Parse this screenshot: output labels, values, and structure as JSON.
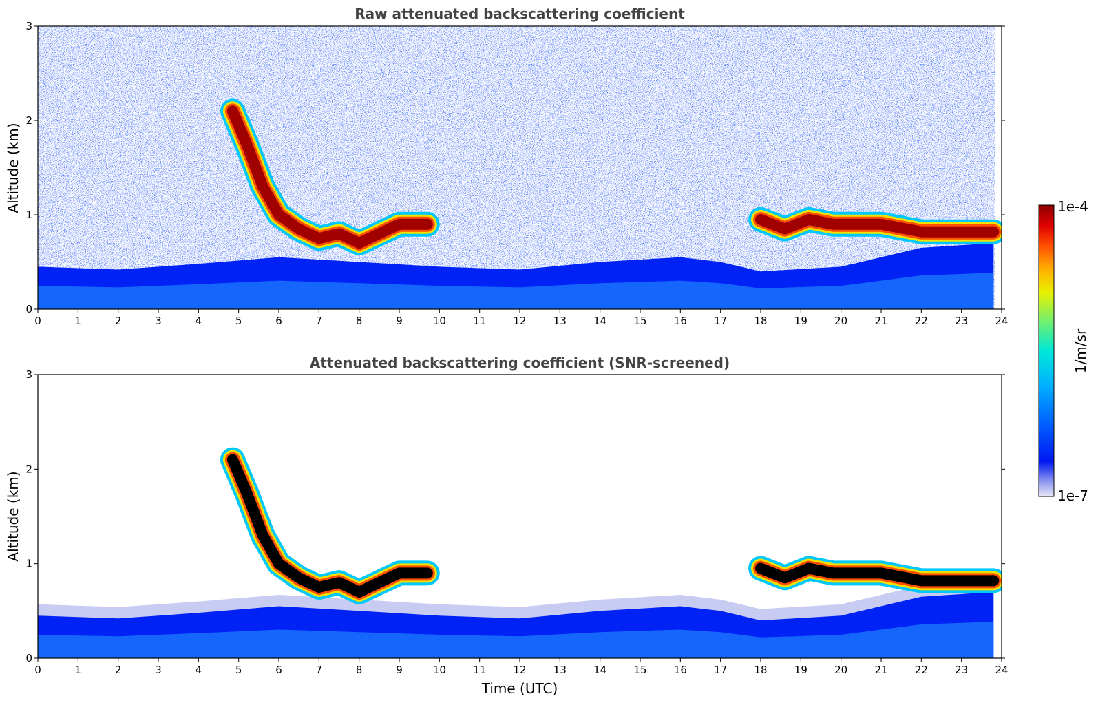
{
  "chart_data": [
    {
      "type": "heatmap",
      "title": "Raw attenuated backscattering coefficient",
      "ylabel": "Altitude (km)",
      "xlabel": "",
      "xlim": [
        0,
        24
      ],
      "ylim": [
        0,
        3
      ],
      "x_ticks": [
        "0",
        "1",
        "2",
        "3",
        "4",
        "5",
        "6",
        "7",
        "8",
        "9",
        "10",
        "11",
        "12",
        "13",
        "14",
        "15",
        "16",
        "17",
        "18",
        "19",
        "20",
        "21",
        "22",
        "23",
        "24"
      ],
      "y_ticks": [
        "0",
        "1",
        "2",
        "3"
      ],
      "boundary_layer_top_km": [
        [
          0,
          0.45
        ],
        [
          2,
          0.42
        ],
        [
          4,
          0.48
        ],
        [
          6,
          0.55
        ],
        [
          8,
          0.5
        ],
        [
          10,
          0.45
        ],
        [
          12,
          0.42
        ],
        [
          14,
          0.5
        ],
        [
          16,
          0.55
        ],
        [
          17,
          0.5
        ],
        [
          18,
          0.4
        ],
        [
          20,
          0.45
        ],
        [
          22,
          0.65
        ],
        [
          23.8,
          0.7
        ]
      ],
      "cloud_layers": [
        {
          "x": [
            4.85,
            5.2,
            5.6,
            6.0,
            6.5,
            7.0,
            7.5,
            8.0,
            8.5,
            9.0,
            9.7
          ],
          "y": [
            2.1,
            1.75,
            1.3,
            1.0,
            0.85,
            0.75,
            0.8,
            0.7,
            0.8,
            0.9,
            0.9
          ]
        },
        {
          "x": [
            18.0,
            18.6,
            19.2,
            19.8,
            21.0,
            22.0,
            23.8
          ],
          "y": [
            0.95,
            0.85,
            0.95,
            0.9,
            0.9,
            0.82,
            0.82
          ]
        }
      ],
      "screened": false
    },
    {
      "type": "heatmap",
      "title": "Attenuated backscattering coefficient (SNR-screened)",
      "ylabel": "Altitude (km)",
      "xlabel": "Time (UTC)",
      "xlim": [
        0,
        24
      ],
      "ylim": [
        0,
        3
      ],
      "x_ticks": [
        "0",
        "1",
        "2",
        "3",
        "4",
        "5",
        "6",
        "7",
        "8",
        "9",
        "10",
        "11",
        "12",
        "13",
        "14",
        "15",
        "16",
        "17",
        "18",
        "19",
        "20",
        "21",
        "22",
        "23",
        "24"
      ],
      "y_ticks": [
        "0",
        "1",
        "2",
        "3"
      ],
      "screened": true
    }
  ],
  "colorbar": {
    "max_label": "1e-4",
    "min_label": "1e-7",
    "label": "1/m/sr",
    "scale": "log",
    "colors": [
      "#e8e8f8",
      "#b0b4f0",
      "#7080f0",
      "#1020f0",
      "#0030ff",
      "#0060ff",
      "#0090ff",
      "#00b8ff",
      "#00e0e8",
      "#30f0b0",
      "#80f070",
      "#c0f030",
      "#f0f000",
      "#ffc000",
      "#ff8000",
      "#ff3000",
      "#e00000",
      "#a00000"
    ]
  }
}
